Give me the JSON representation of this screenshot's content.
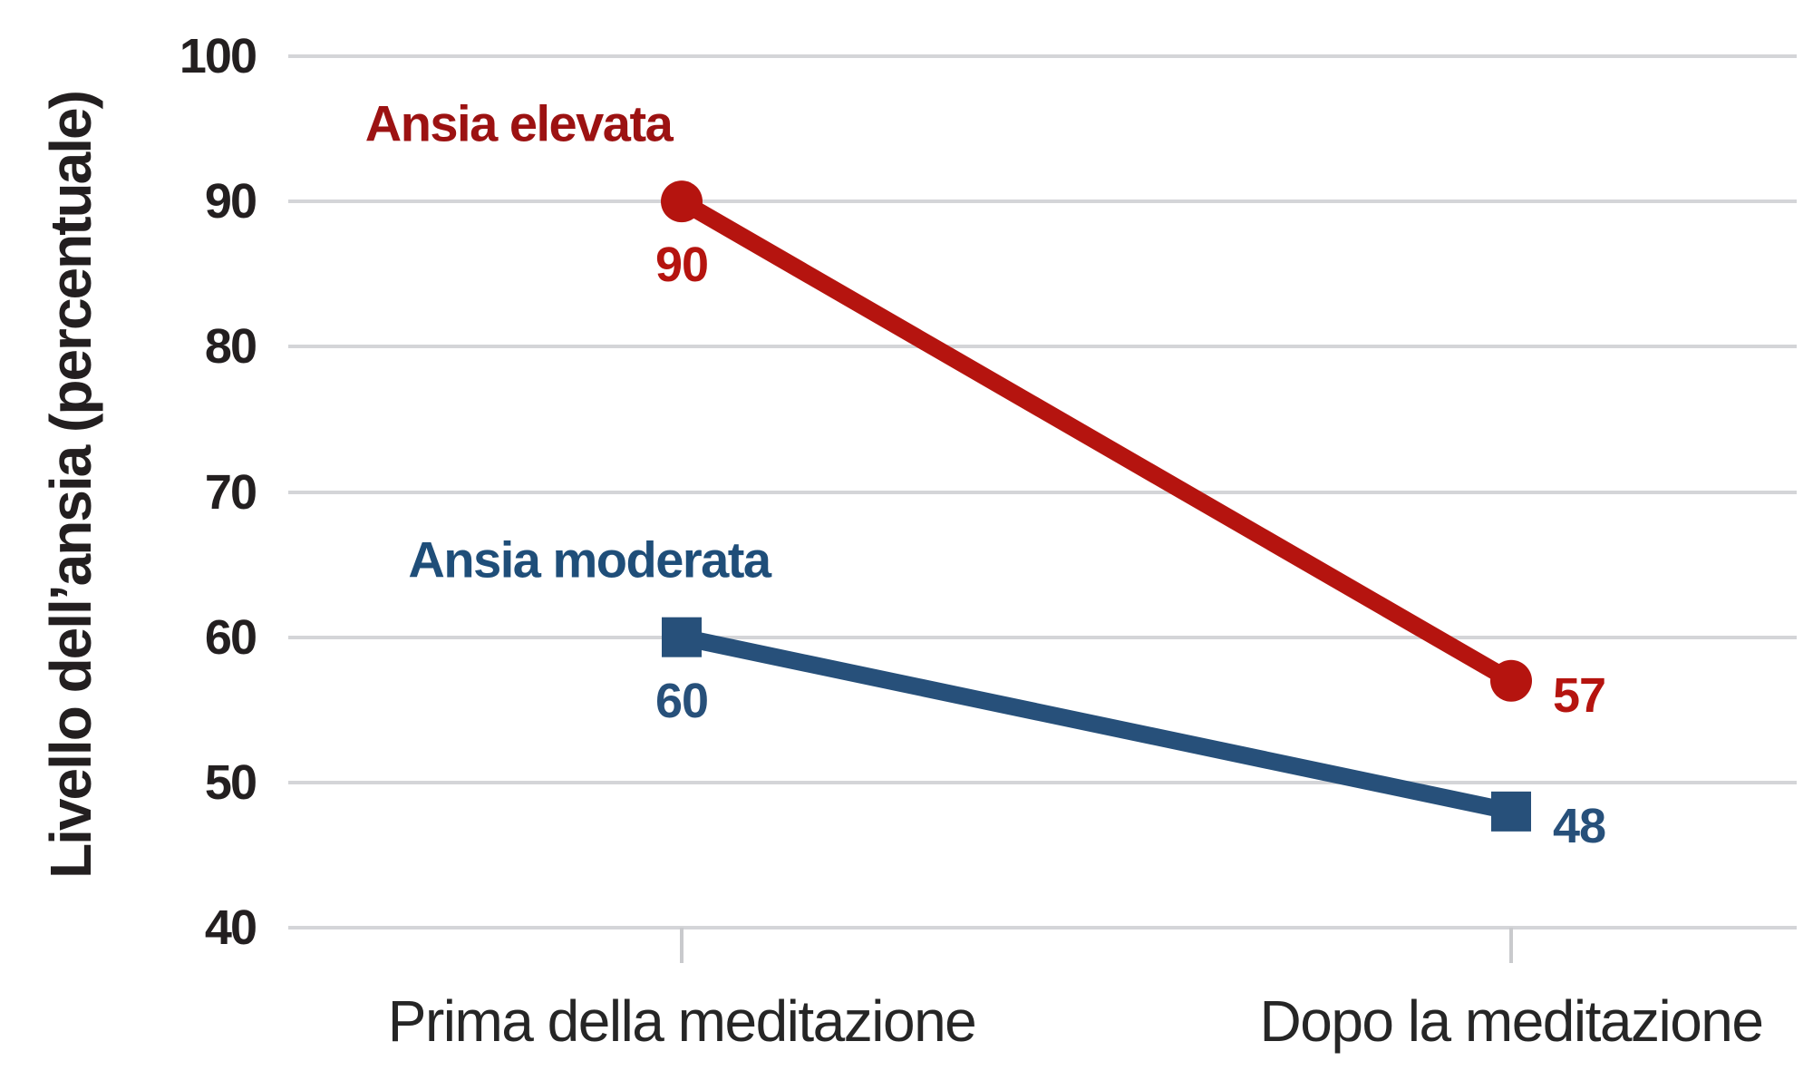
{
  "chart_data": {
    "type": "line",
    "title": "",
    "categories": [
      "Prima della meditazione",
      "Dopo la meditazione"
    ],
    "series": [
      {
        "name": "Ansia elevata",
        "values": [
          90,
          57
        ],
        "color": "#b5140f",
        "name_color": "#9c1212",
        "marker": "circle"
      },
      {
        "name": "Ansia moderata",
        "values": [
          60,
          48
        ],
        "color": "#27507a",
        "name_color": "#1f4e79",
        "marker": "square"
      }
    ],
    "xlabel": "",
    "ylabel": "Livello dell’ansia (percentuale)",
    "ylim": [
      40,
      100
    ],
    "yticks": [
      100,
      90,
      80,
      70,
      60,
      50,
      40
    ],
    "grid": true,
    "gridline_color": "#d4d5d8",
    "legend_position": "inline-labels"
  }
}
